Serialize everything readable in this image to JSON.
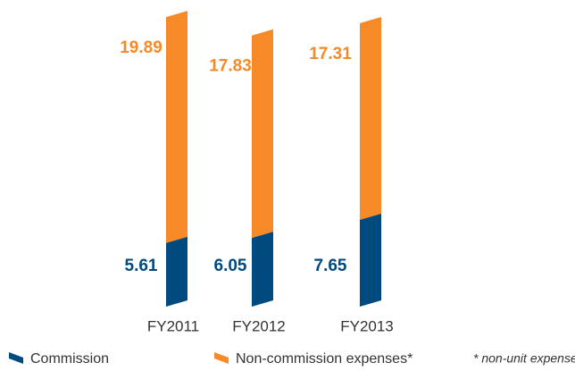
{
  "chart_data": {
    "type": "bar",
    "stacked": true,
    "categories": [
      "FY2011",
      "FY2012",
      "FY2013"
    ],
    "series": [
      {
        "name": "Commission",
        "color": "#004a7f",
        "values": [
          5.61,
          6.05,
          7.65
        ]
      },
      {
        "name": "Non-commission expenses*",
        "color": "#f58a27",
        "values": [
          19.89,
          17.83,
          17.31
        ]
      }
    ],
    "note": "* non-unit expenses"
  }
}
